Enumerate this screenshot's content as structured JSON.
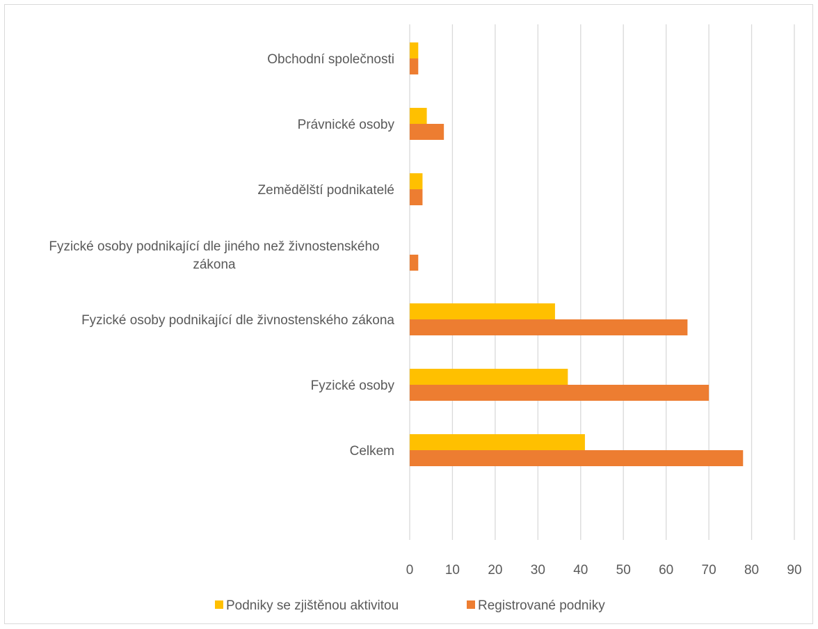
{
  "chart_data": {
    "type": "bar",
    "orientation": "horizontal",
    "categories": [
      "Obchodní společnosti",
      "Právnické osoby",
      "Zemědělští podnikatelé",
      "Fyzické osoby podnikající dle jiného než živnostenského zákona",
      "Fyzické osoby podnikající dle živnostenského zákona",
      "Fyzické osoby",
      "Celkem"
    ],
    "category_lines": [
      [
        "Obchodní společnosti"
      ],
      [
        "Právnické osoby"
      ],
      [
        "Zemědělští podnikatelé"
      ],
      [
        "Fyzické osoby podnikající dle jiného než živnostenského",
        "zákona"
      ],
      [
        "Fyzické osoby podnikající dle živnostenského zákona"
      ],
      [
        "Fyzické osoby"
      ],
      [
        "Celkem"
      ]
    ],
    "series": [
      {
        "name": "Podniky se zjištěnou aktivitou",
        "color": "#FFC000",
        "values": [
          2,
          4,
          3,
          0,
          34,
          37,
          41
        ]
      },
      {
        "name": "Registrované podniky",
        "color": "#ED7D31",
        "values": [
          2,
          8,
          3,
          2,
          65,
          70,
          78
        ]
      }
    ],
    "xlim": [
      0,
      90
    ],
    "ticks": [
      "0",
      "10",
      "20",
      "30",
      "40",
      "50",
      "60",
      "70",
      "80",
      "90"
    ],
    "grid": true,
    "legend_position": "bottom"
  }
}
